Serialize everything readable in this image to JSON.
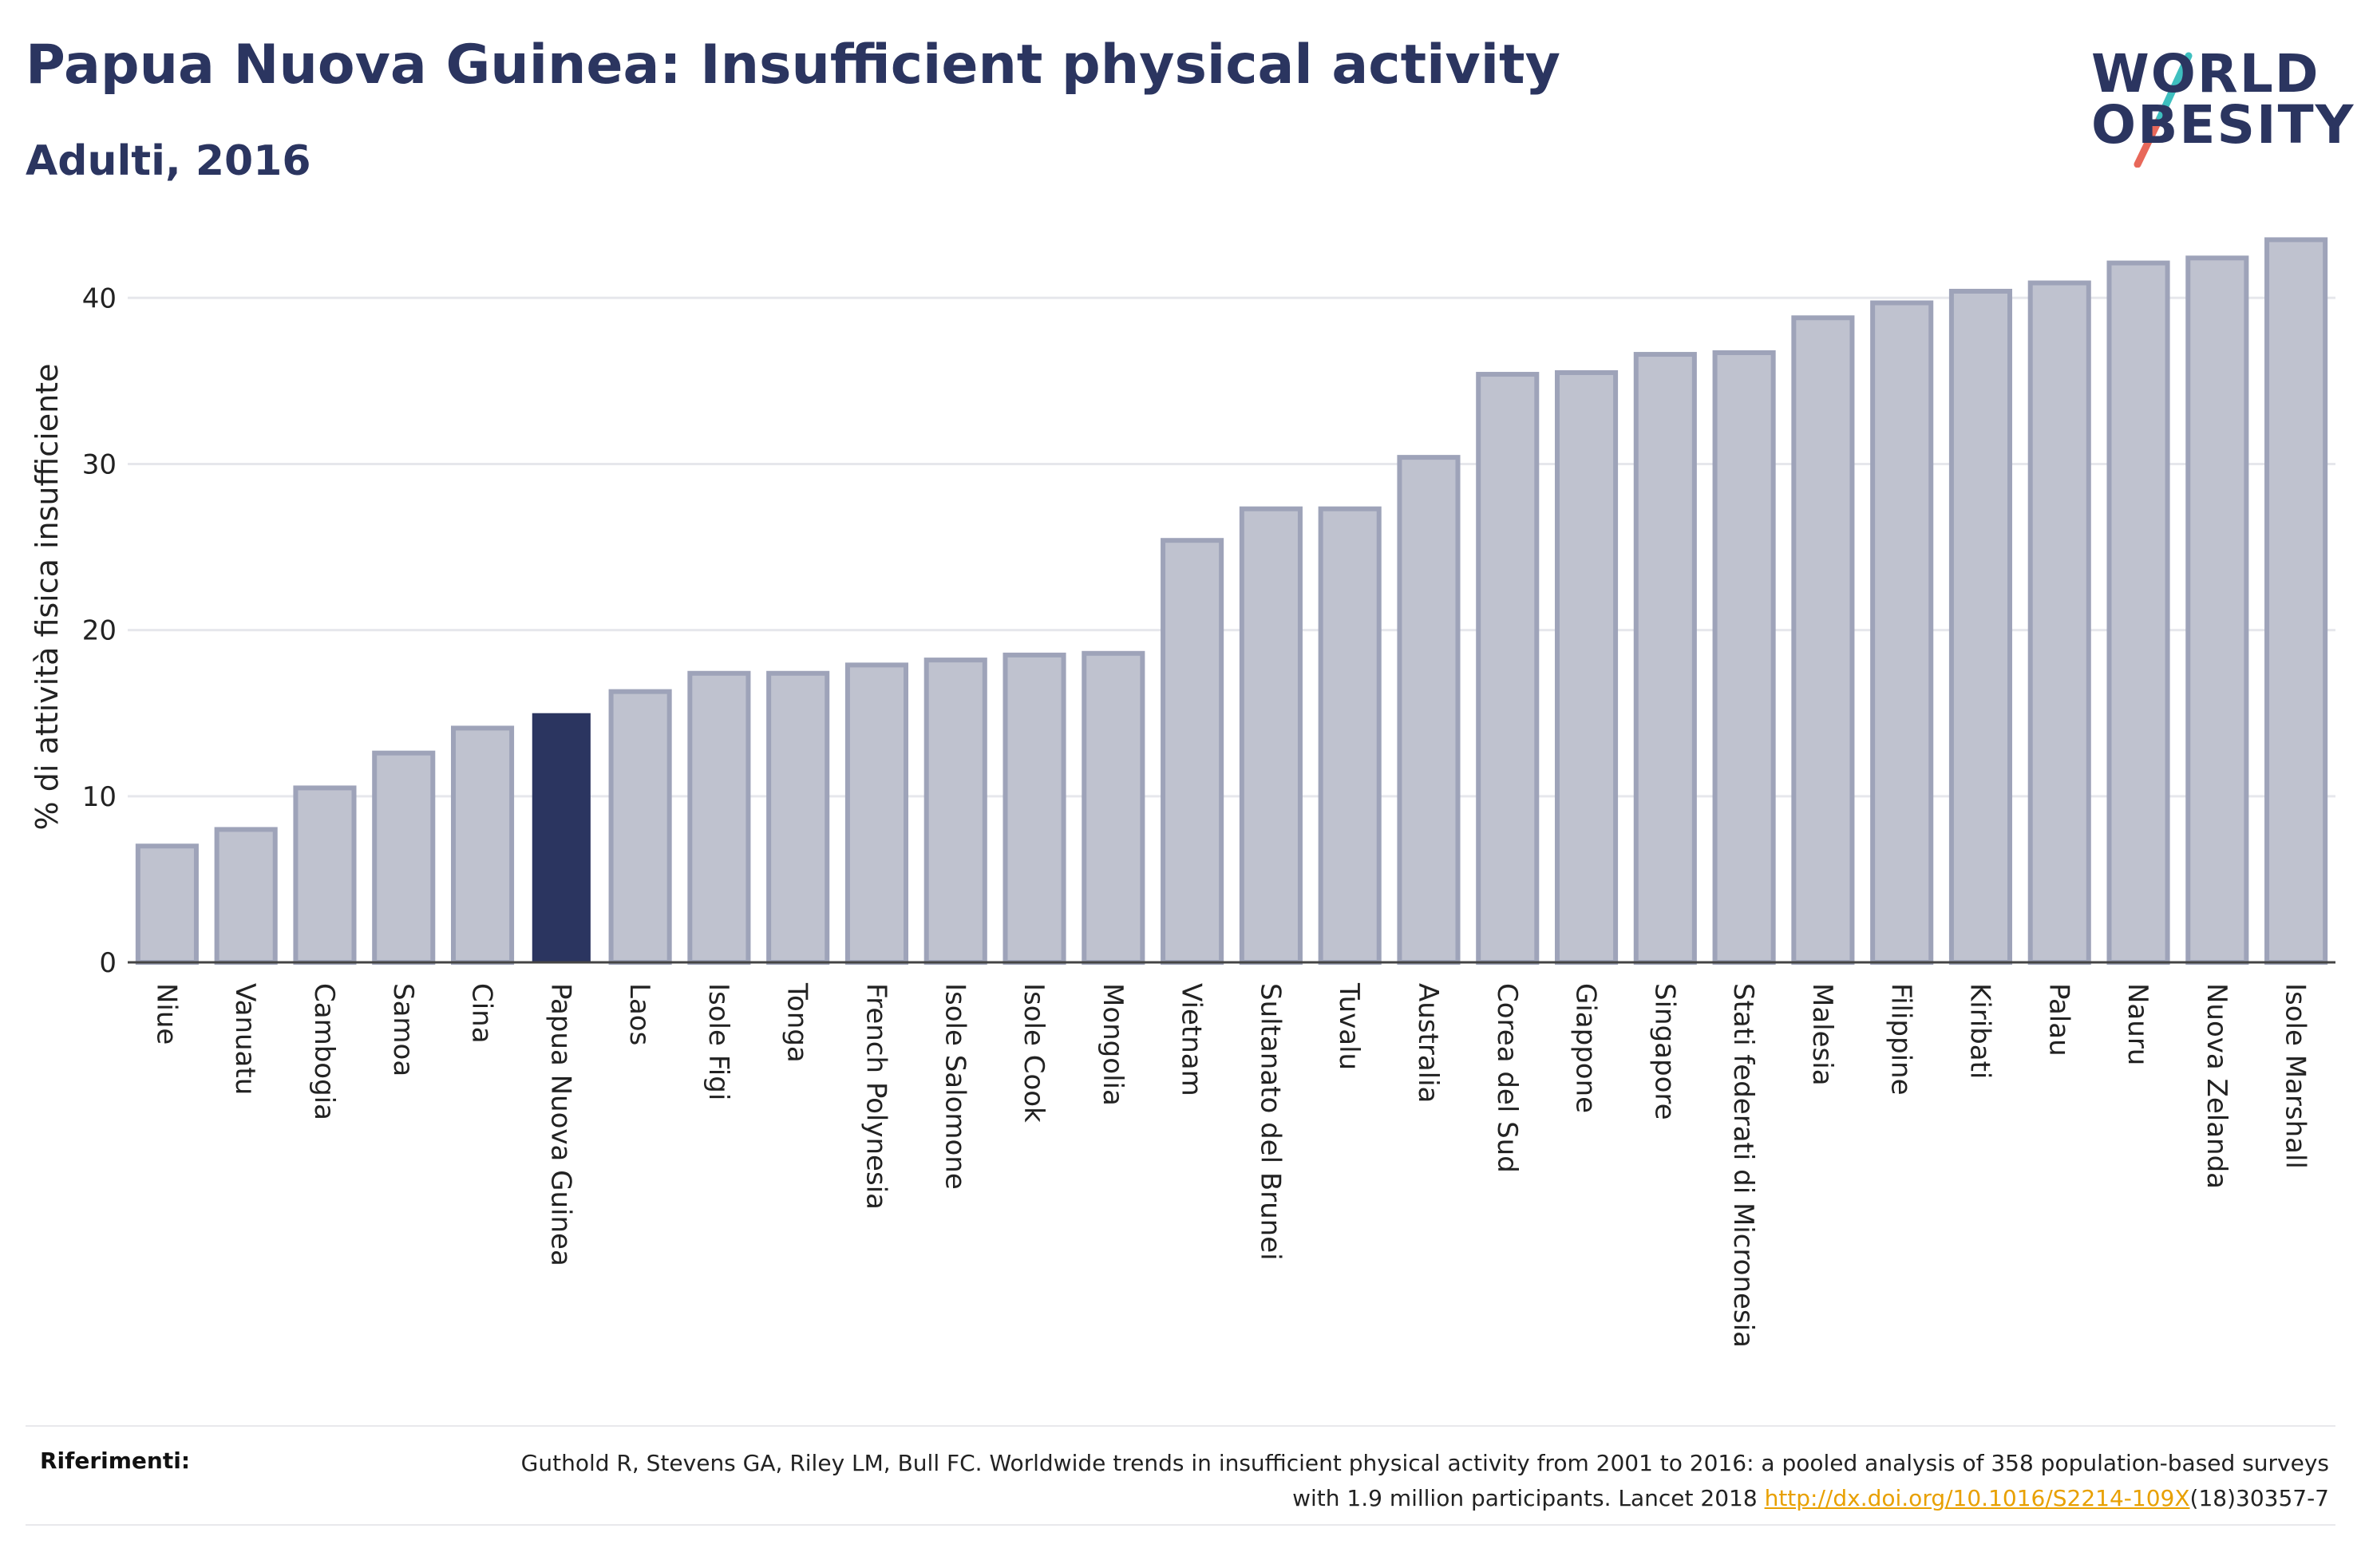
{
  "header": {
    "title": "Papua Nuova Guinea: Insufficient physical activity",
    "subtitle": "Adulti, 2016"
  },
  "logo": {
    "line1": "WORLD",
    "line2": "OBESITY",
    "color": "#2b3560",
    "slash_colors": [
      "#3ebfbf",
      "#e8685a"
    ]
  },
  "chart_data": {
    "type": "bar",
    "ylabel": "% di attività fisica insufficiente",
    "ylim": [
      0,
      44
    ],
    "yticks": [
      0,
      10,
      20,
      30,
      40
    ],
    "grid": true,
    "highlight": "Papua Nuova Guinea",
    "colors": {
      "bar_fill": "#bfc2cf",
      "bar_stroke": "#9ea3b9",
      "highlight": "#2b3560"
    },
    "categories": [
      "Niue",
      "Vanuatu",
      "Cambogia",
      "Samoa",
      "Cina",
      "Papua Nuova Guinea",
      "Laos",
      "Isole Figi",
      "Tonga",
      "French Polynesia",
      "Isole Salomone",
      "Isole Cook",
      "Mongolia",
      "Vietnam",
      "Sultanato del Brunei",
      "Tuvalu",
      "Australia",
      "Corea del Sud",
      "Giappone",
      "Singapore",
      "Stati federati di Micronesia",
      "Malesia",
      "Filippine",
      "Kiribati",
      "Palau",
      "Nauru",
      "Nuova Zelanda",
      "Isole Marshall"
    ],
    "values": [
      7.0,
      8.0,
      10.5,
      12.6,
      14.1,
      15.0,
      16.3,
      17.4,
      17.4,
      17.9,
      18.2,
      18.5,
      18.6,
      25.4,
      27.3,
      27.3,
      30.4,
      35.4,
      35.5,
      36.6,
      36.7,
      38.8,
      39.7,
      40.4,
      40.9,
      42.1,
      42.4,
      43.5
    ]
  },
  "references": {
    "label": "Riferimenti:",
    "text_before": "Guthold R, Stevens GA, Riley LM, Bull FC. Worldwide trends in insufficient physical activity from 2001 to 2016: a pooled analysis of 358 population-based surveys with 1.9 million participants. Lancet 2018 ",
    "link": "http://dx.doi.org/10.1016/S2214-109X",
    "text_after": "(18)30357-7"
  }
}
